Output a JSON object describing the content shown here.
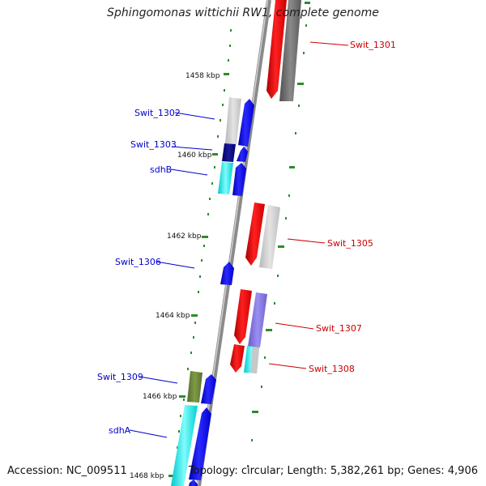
{
  "title": "Sphingomonas wittichii RW1, complete genome",
  "accession": "Accession: NC_009511",
  "topology": "Topology: circular; Length: 5,382,261 bp; Genes: 4,906",
  "ticks": [
    "1458 kbp",
    "1460 kbp",
    "1462 kbp",
    "1464 kbp",
    "1466 kbp",
    "1468 kbp"
  ],
  "genes": [
    {
      "name": "Swit_1301",
      "strand": "+"
    },
    {
      "name": "Swit_1302",
      "strand": "-"
    },
    {
      "name": "Swit_1303",
      "strand": "-"
    },
    {
      "name": "sdhB",
      "strand": "-"
    },
    {
      "name": "Swit_1305",
      "strand": "+"
    },
    {
      "name": "Swit_1306",
      "strand": "-"
    },
    {
      "name": "Swit_1307",
      "strand": "+"
    },
    {
      "name": "Swit_1308",
      "strand": "+"
    },
    {
      "name": "Swit_1309",
      "strand": "-"
    },
    {
      "name": "sdhA",
      "strand": "-"
    }
  ],
  "colors": {
    "forward_label": "#cc0000",
    "reverse_label": "#0000cc",
    "tick": "#228b22",
    "backbone": "#888888"
  }
}
